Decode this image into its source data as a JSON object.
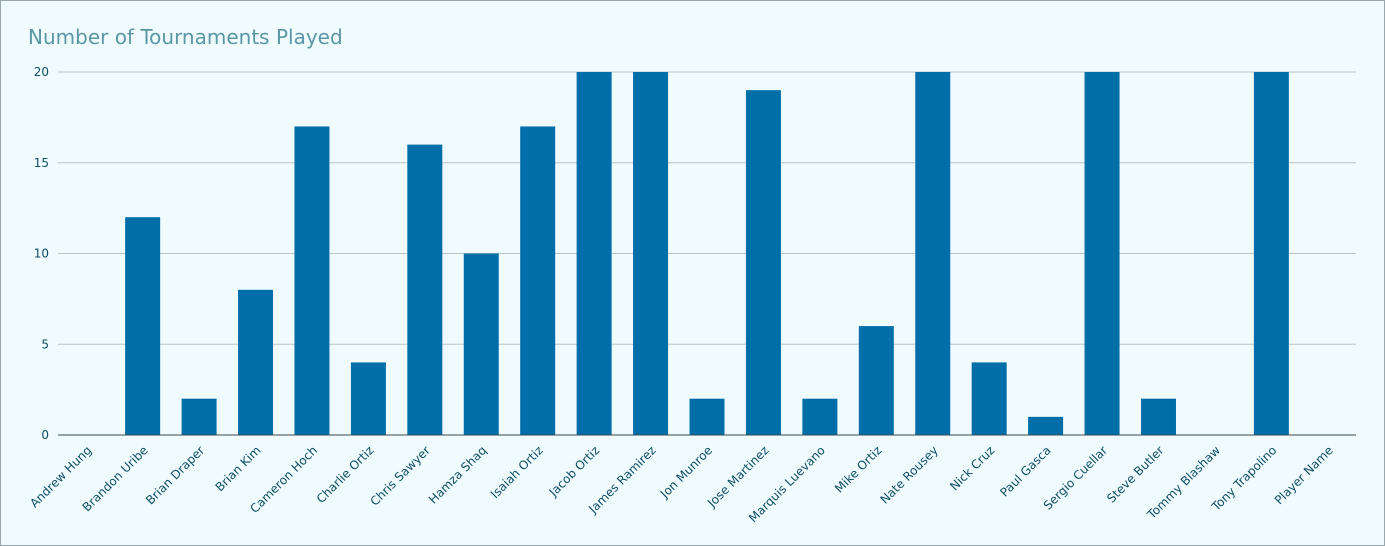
{
  "chart_data": {
    "type": "bar",
    "title": "Number of Tournaments Played",
    "xlabel": "",
    "ylabel": "",
    "categories": [
      "Andrew Hung",
      "Brandon Uribe",
      "Brian Draper",
      "Brian Kim",
      "Cameron Hoch",
      "Charlie Ortiz",
      "Chris Sawyer",
      "Hamza Shaq",
      "Isaiah Ortiz",
      "Jacob Ortiz",
      "James Ramirez",
      "Jon Munroe",
      "Jose Martinez",
      "Marquis Luevano",
      "Mike Ortiz",
      "Nate Rousey",
      "Nick Cruz",
      "Paul Gasca",
      "Sergio Cuellar",
      "Steve Butler",
      "Tommy Blashaw",
      "Tony Trapolino",
      "Player Name"
    ],
    "values": [
      0,
      12,
      2,
      8,
      17,
      4,
      16,
      10,
      17,
      20,
      20,
      2,
      19,
      2,
      6,
      20,
      4,
      1,
      20,
      2,
      0,
      20,
      null
    ],
    "ylim": [
      0,
      20
    ],
    "yticks": [
      0,
      5,
      10,
      15,
      20
    ],
    "grid": true,
    "bar_color": "#006ea9",
    "grid_color": "#b9c4c6",
    "axis_color": "#3a4a4f",
    "title_color": "#5a97a5"
  }
}
